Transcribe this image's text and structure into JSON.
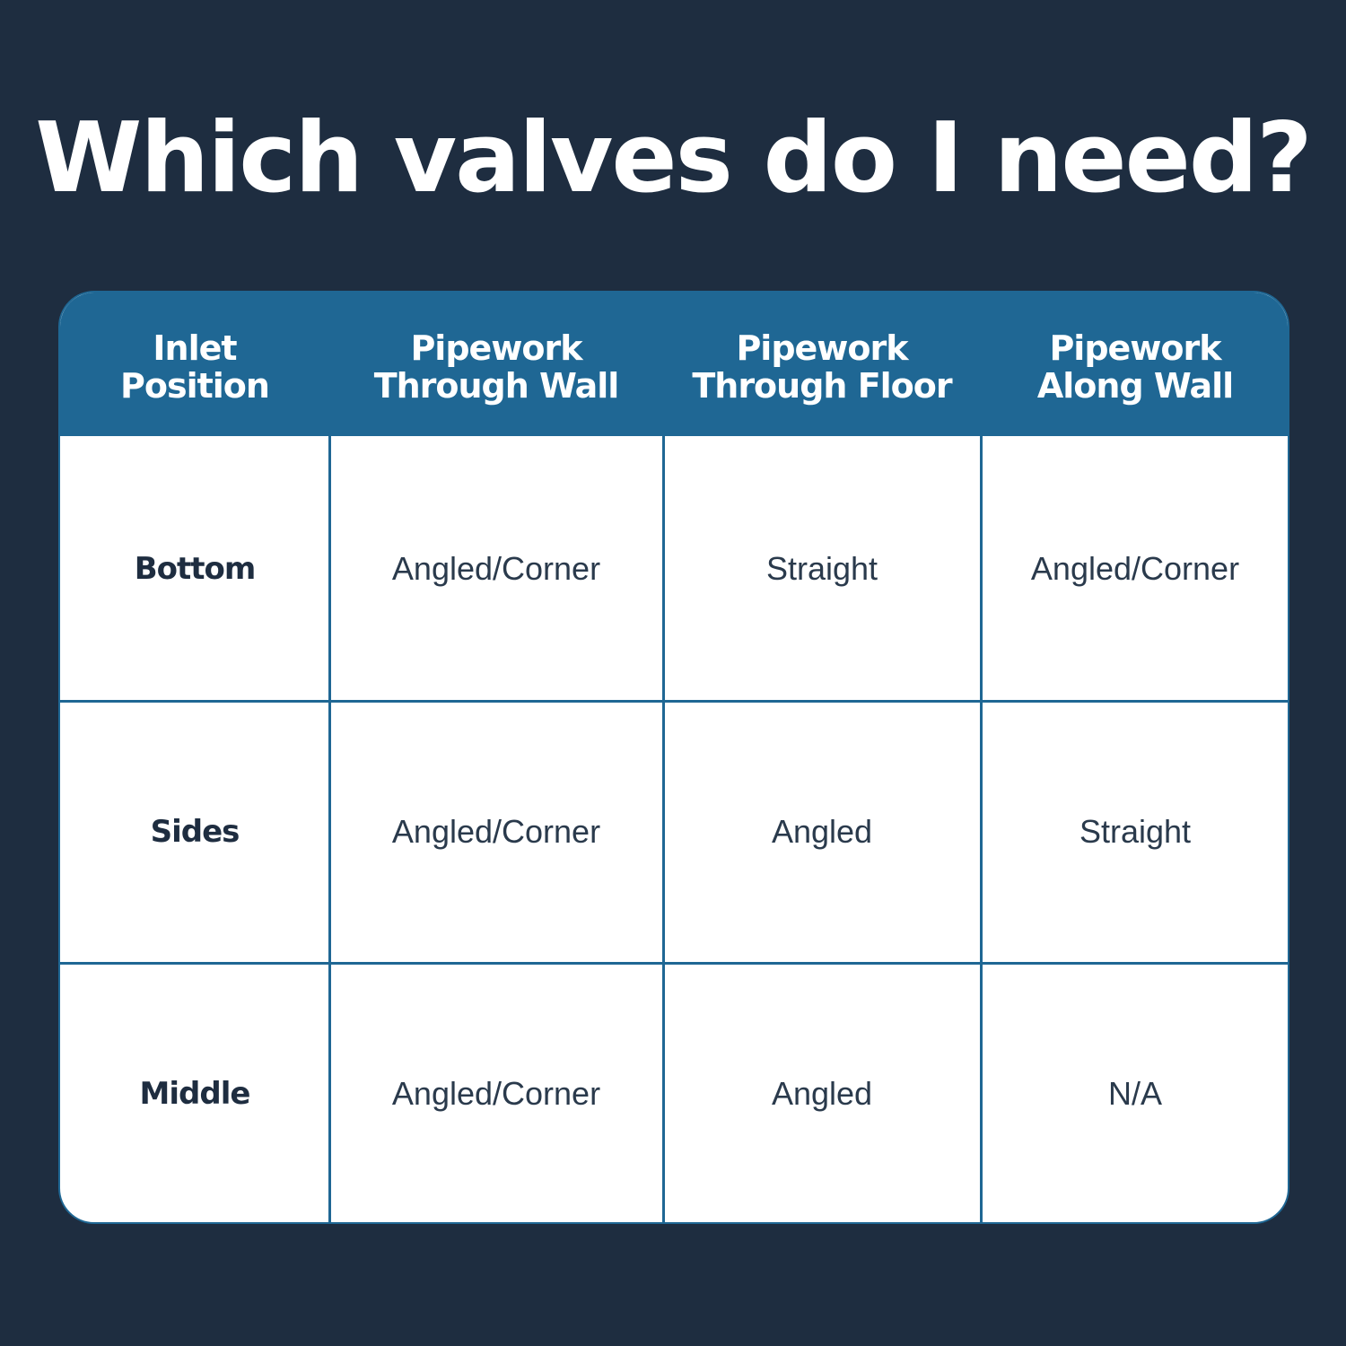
{
  "title": "Which valves do I need?",
  "colors": {
    "background": "#1e2d40",
    "header": "#1f6794",
    "cell": "#ffffff"
  },
  "table": {
    "headers": [
      "Inlet\nPosition",
      "Pipework\nThrough Wall",
      "Pipework\nThrough Floor",
      "Pipework\nAlong Wall"
    ],
    "rows": [
      [
        "Bottom",
        "Angled/Corner",
        "Straight",
        "Angled/Corner"
      ],
      [
        "Sides",
        "Angled/Corner",
        "Angled",
        "Straight"
      ],
      [
        "Middle",
        "Angled/Corner",
        "Angled",
        "N/A"
      ]
    ]
  }
}
